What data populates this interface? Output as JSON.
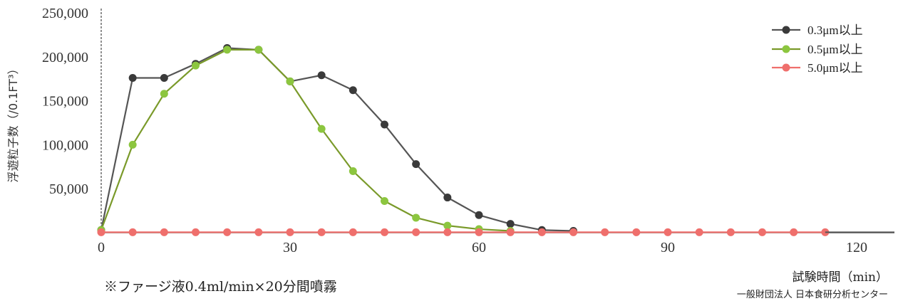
{
  "chart_data": {
    "type": "line",
    "ylabel": "浮遊粒子数（/0.1FT³）",
    "xlabel": "試験時間（min）",
    "x_ticks": [
      "0",
      "30",
      "60",
      "90",
      "120"
    ],
    "y_ticks": [
      "50,000",
      "100,000",
      "150,000",
      "200,000",
      "250,000"
    ],
    "xlim": [
      0,
      126
    ],
    "ylim": [
      0,
      250000
    ],
    "legend_position": "top-right",
    "grid": false,
    "series": [
      {
        "name": "0.3μm以上",
        "color": "#3a3a3a",
        "line_color": "#555555",
        "x": [
          0,
          5,
          10,
          15,
          20,
          25,
          30,
          35,
          40,
          45,
          50,
          55,
          60,
          65,
          70,
          75
        ],
        "y": [
          3000,
          176000,
          176000,
          192000,
          210000,
          208000,
          172000,
          179000,
          162000,
          123000,
          78000,
          40000,
          20000,
          10000,
          3000,
          2000
        ]
      },
      {
        "name": "0.5μm以上",
        "color": "#8cc63f",
        "line_color": "#7a9a2a",
        "x": [
          0,
          5,
          10,
          15,
          20,
          25,
          30,
          35,
          40,
          45,
          50,
          55,
          60,
          65
        ],
        "y": [
          3000,
          100000,
          158000,
          190000,
          208000,
          208000,
          172000,
          118000,
          70000,
          36000,
          17000,
          8000,
          4000,
          2000
        ]
      },
      {
        "name": "5.0μm以上",
        "color": "#ef6f6c",
        "line_color": "#ef6f6c",
        "x": [
          0,
          5,
          10,
          15,
          20,
          25,
          30,
          35,
          40,
          45,
          50,
          55,
          60,
          65,
          70,
          75,
          80,
          85,
          90,
          95,
          100,
          105,
          110,
          115
        ],
        "y": [
          500,
          500,
          500,
          500,
          500,
          500,
          500,
          500,
          500,
          500,
          500,
          500,
          500,
          500,
          500,
          500,
          500,
          500,
          500,
          500,
          500,
          500,
          500,
          500
        ]
      }
    ]
  },
  "annotations": {
    "note": "※ファージ液0.4ml/min×20分間噴霧",
    "credit": "一般財団法人 日本食研分析センター"
  }
}
